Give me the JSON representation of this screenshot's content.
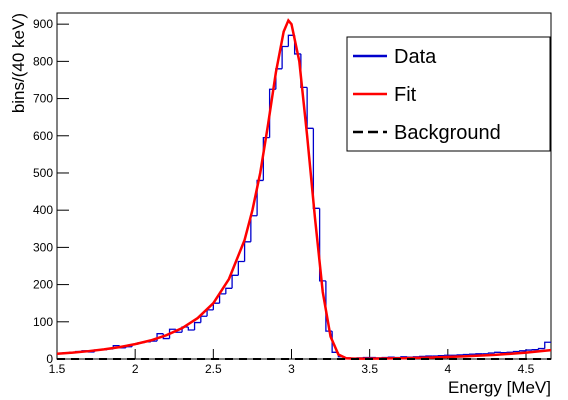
{
  "chart_data": {
    "type": "histogram",
    "xlabel": "Energy [MeV]",
    "ylabel": "bins/(40 keV)",
    "xlim": [
      1.5,
      4.66
    ],
    "ylim": [
      0,
      930
    ],
    "xticks": [
      1.5,
      2,
      2.5,
      3,
      3.5,
      4,
      4.5
    ],
    "yticks": [
      0,
      100,
      200,
      300,
      400,
      500,
      600,
      700,
      800,
      900
    ],
    "legend": "upper right",
    "histogram": {
      "name": "Data",
      "color": "#0000cc",
      "bins": [
        1.5,
        1.54,
        1.58,
        1.62,
        1.66,
        1.7,
        1.74,
        1.78,
        1.82,
        1.86,
        1.9,
        1.94,
        1.98,
        2.02,
        2.06,
        2.1,
        2.14,
        2.18,
        2.22,
        2.26,
        2.3,
        2.34,
        2.38,
        2.42,
        2.46,
        2.5,
        2.54,
        2.58,
        2.62,
        2.66,
        2.7,
        2.74,
        2.78,
        2.82,
        2.86,
        2.9,
        2.94,
        2.98,
        3.02,
        3.06,
        3.1,
        3.14,
        3.18,
        3.22,
        3.26,
        3.3,
        3.34,
        3.38,
        3.42,
        3.46,
        3.5,
        3.54,
        3.58,
        3.62,
        3.66,
        3.7,
        3.74,
        3.78,
        3.82,
        3.86,
        3.9,
        3.94,
        3.98,
        4.02,
        4.06,
        4.1,
        4.14,
        4.18,
        4.22,
        4.26,
        4.3,
        4.34,
        4.38,
        4.42,
        4.46,
        4.5,
        4.54,
        4.58,
        4.62,
        4.66
      ],
      "counts": [
        15,
        17,
        18,
        20,
        22,
        19,
        24,
        25,
        27,
        36,
        30,
        33,
        40,
        44,
        46,
        48,
        68,
        55,
        80,
        72,
        86,
        78,
        98,
        115,
        132,
        150,
        175,
        190,
        225,
        262,
        315,
        385,
        480,
        595,
        725,
        780,
        840,
        870,
        820,
        730,
        620,
        405,
        210,
        75,
        18,
        6,
        3,
        2,
        3,
        4,
        4,
        3,
        4,
        5,
        4,
        6,
        5,
        6,
        7,
        8,
        8,
        9,
        10,
        10,
        11,
        12,
        13,
        14,
        14,
        16,
        18,
        17,
        18,
        20,
        22,
        24,
        25,
        28,
        45
      ]
    },
    "series": [
      {
        "name": "Fit",
        "color": "#ff0000",
        "x": [
          1.5,
          1.6,
          1.7,
          1.8,
          1.9,
          2.0,
          2.1,
          2.2,
          2.3,
          2.4,
          2.5,
          2.6,
          2.7,
          2.75,
          2.8,
          2.85,
          2.9,
          2.95,
          2.98,
          3.0,
          3.05,
          3.1,
          3.15,
          3.2,
          3.25,
          3.3,
          3.35,
          3.4,
          3.5,
          3.7,
          3.9,
          4.1,
          4.3,
          4.5,
          4.66
        ],
        "values": [
          14,
          17,
          21,
          26,
          32,
          40,
          50,
          64,
          83,
          110,
          150,
          215,
          320,
          400,
          500,
          630,
          770,
          880,
          910,
          900,
          800,
          600,
          380,
          180,
          60,
          12,
          2,
          1,
          1,
          2,
          4,
          7,
          11,
          17,
          24
        ]
      },
      {
        "name": "Background",
        "color": "#000000",
        "dashed": true,
        "x": [
          1.5,
          4.66
        ],
        "values": [
          0,
          0
        ]
      }
    ]
  }
}
